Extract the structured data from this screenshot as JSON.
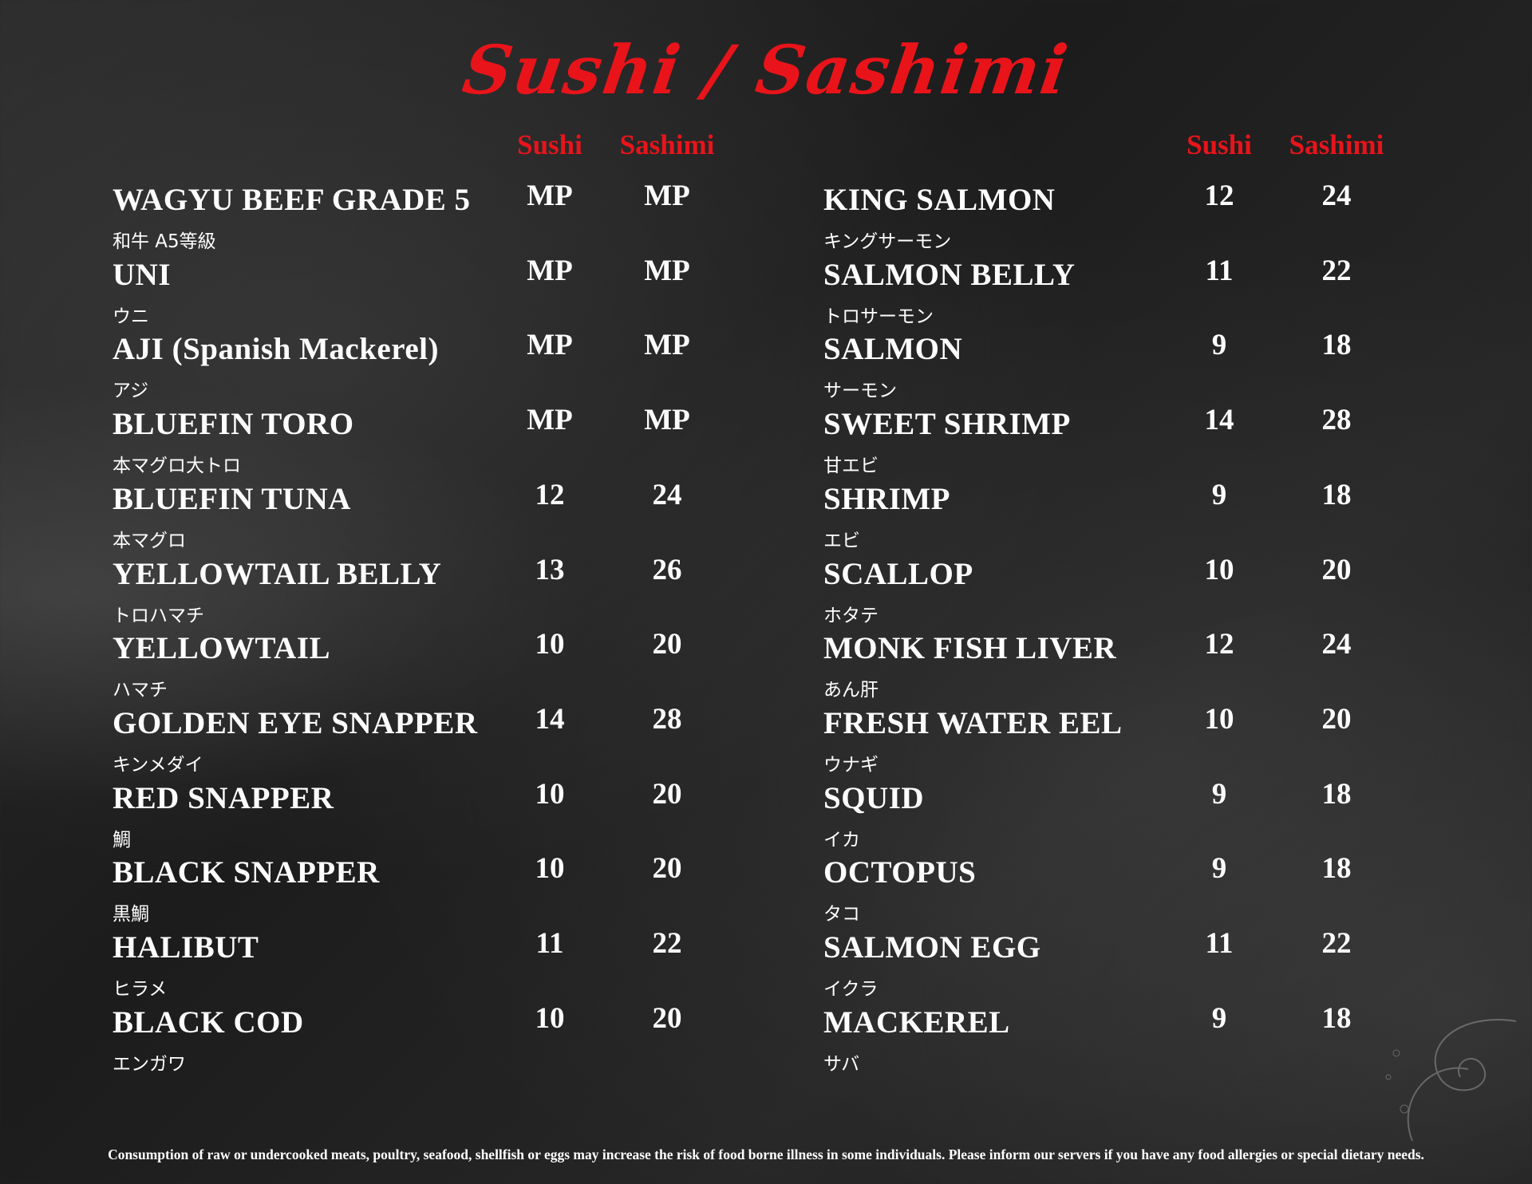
{
  "title": "Sushi / Sashimi",
  "column_headers": {
    "sushi": "Sushi",
    "sashimi": "Sashimi"
  },
  "left_items": [
    {
      "name": "WAGYU BEEF GRADE 5",
      "jp": "和牛 A5等級",
      "sushi": "MP",
      "sashimi": "MP"
    },
    {
      "name": "UNI",
      "jp": "ウニ",
      "sushi": "MP",
      "sashimi": "MP"
    },
    {
      "name": "AJI (Spanish Mackerel)",
      "jp": "アジ",
      "sushi": "MP",
      "sashimi": "MP"
    },
    {
      "name": "BLUEFIN TORO",
      "jp": "本マグロ大トロ",
      "sushi": "MP",
      "sashimi": "MP"
    },
    {
      "name": "BLUEFIN TUNA",
      "jp": "本マグロ",
      "sushi": "12",
      "sashimi": "24"
    },
    {
      "name": "YELLOWTAIL BELLY",
      "jp": "トロハマチ",
      "sushi": "13",
      "sashimi": "26"
    },
    {
      "name": "YELLOWTAIL",
      "jp": "ハマチ",
      "sushi": "10",
      "sashimi": "20"
    },
    {
      "name": "GOLDEN EYE SNAPPER",
      "jp": "キンメダイ",
      "sushi": "14",
      "sashimi": "28"
    },
    {
      "name": "RED SNAPPER",
      "jp": "鯛",
      "sushi": "10",
      "sashimi": "20"
    },
    {
      "name": "BLACK SNAPPER",
      "jp": "黒鯛",
      "sushi": "10",
      "sashimi": "20"
    },
    {
      "name": "HALIBUT",
      "jp": "ヒラメ",
      "sushi": "11",
      "sashimi": "22"
    },
    {
      "name": "BLACK COD",
      "jp": "エンガワ",
      "sushi": "10",
      "sashimi": "20"
    }
  ],
  "right_items": [
    {
      "name": "KING SALMON",
      "jp": "キングサーモン",
      "sushi": "12",
      "sashimi": "24"
    },
    {
      "name": "SALMON BELLY",
      "jp": "トロサーモン",
      "sushi": "11",
      "sashimi": "22"
    },
    {
      "name": "SALMON",
      "jp": "サーモン",
      "sushi": "9",
      "sashimi": "18"
    },
    {
      "name": "SWEET SHRIMP",
      "jp": "甘エビ",
      "sushi": "14",
      "sashimi": "28"
    },
    {
      "name": "SHRIMP",
      "jp": "エビ",
      "sushi": "9",
      "sashimi": "18"
    },
    {
      "name": "SCALLOP",
      "jp": "ホタテ",
      "sushi": "10",
      "sashimi": "20"
    },
    {
      "name": "MONK FISH LIVER",
      "jp": "あん肝",
      "sushi": "12",
      "sashimi": "24"
    },
    {
      "name": "FRESH WATER EEL",
      "jp": "ウナギ",
      "sushi": "10",
      "sashimi": "20"
    },
    {
      "name": "SQUID",
      "jp": "イカ",
      "sushi": "9",
      "sashimi": "18"
    },
    {
      "name": "OCTOPUS",
      "jp": "タコ",
      "sushi": "9",
      "sashimi": "18"
    },
    {
      "name": "SALMON EGG",
      "jp": "イクラ",
      "sushi": "11",
      "sashimi": "22"
    },
    {
      "name": "MACKEREL",
      "jp": "サバ",
      "sushi": "9",
      "sashimi": "18"
    }
  ],
  "footer": "Consumption of raw or undercooked meats, poultry, seafood, shellfish or eggs may increase the risk of food borne illness in some individuals. Please inform our servers if you have any food allergies or special dietary needs.",
  "colors": {
    "accent": "#e8141a",
    "text": "#ffffff"
  }
}
